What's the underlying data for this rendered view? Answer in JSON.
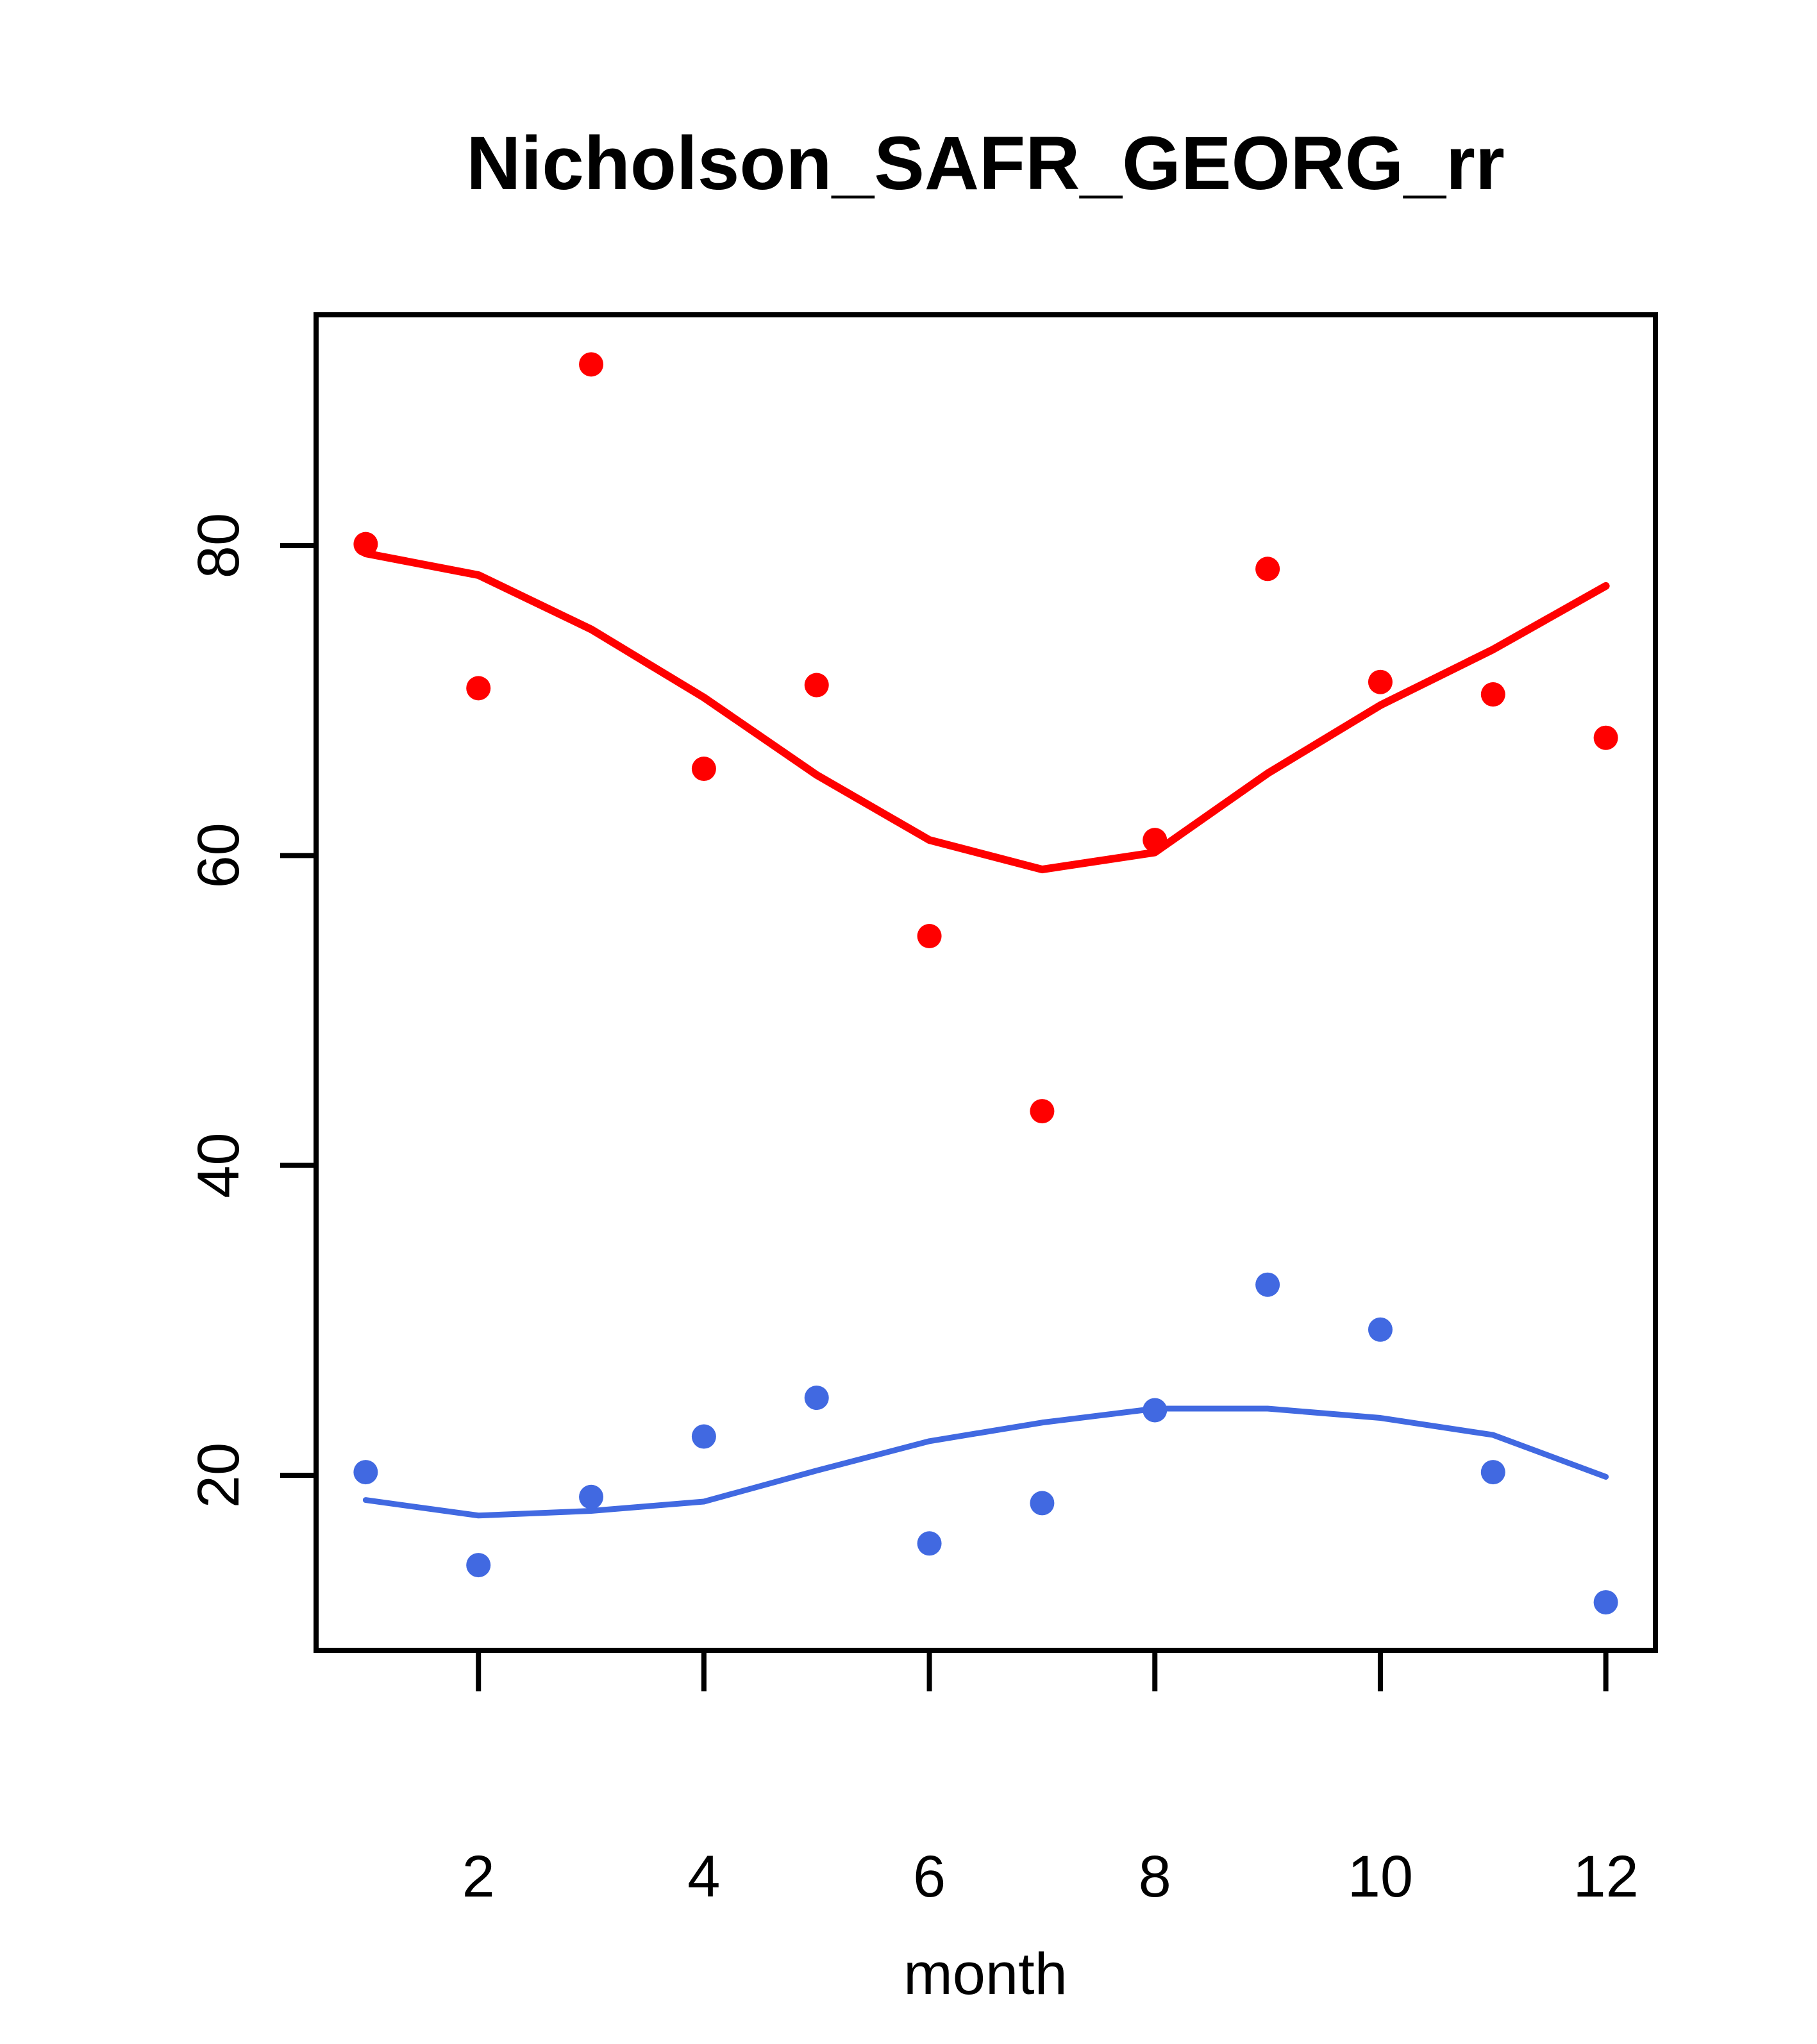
{
  "chart_data": {
    "type": "scatter",
    "title": "Nicholson_SAFR_GEORG_rr",
    "xlabel": "month",
    "ylabel": "",
    "x": [
      1,
      2,
      3,
      4,
      5,
      6,
      7,
      8,
      9,
      10,
      11,
      12
    ],
    "series": [
      {
        "name": "red-points",
        "kind": "scatter",
        "color": "#FF0000",
        "values": [
          80.1,
          70.8,
          91.7,
          65.6,
          71.0,
          54.8,
          43.5,
          61.0,
          78.5,
          71.2,
          70.4,
          67.6
        ]
      },
      {
        "name": "red-loess-line",
        "kind": "line",
        "color": "#FF0000",
        "stroke_width": 12,
        "values": [
          79.5,
          78.1,
          74.6,
          70.2,
          65.2,
          61.0,
          59.1,
          60.2,
          65.3,
          69.7,
          73.3,
          77.4
        ]
      },
      {
        "name": "blue-points",
        "kind": "scatter",
        "color": "#4169E1",
        "values": [
          20.2,
          14.2,
          18.6,
          22.5,
          25.0,
          15.6,
          18.2,
          24.2,
          32.3,
          29.4,
          20.2,
          11.8
        ]
      },
      {
        "name": "blue-loess-line",
        "kind": "line",
        "color": "#4169E1",
        "stroke_width": 9,
        "values": [
          18.4,
          17.4,
          17.7,
          18.3,
          20.3,
          22.2,
          23.4,
          24.3,
          24.3,
          23.7,
          22.6,
          19.9
        ]
      }
    ],
    "xlim": [
      0.56,
      12.44
    ],
    "ylim": [
      8.7,
      94.9
    ],
    "x_ticks": [
      2,
      4,
      6,
      8,
      10,
      12
    ],
    "y_ticks": [
      20,
      40,
      60,
      80
    ],
    "grid": false,
    "legend": null,
    "point_radius": 19,
    "axis_color": "#000000"
  }
}
